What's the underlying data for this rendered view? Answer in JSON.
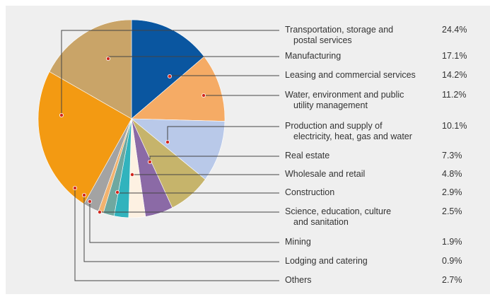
{
  "chart_data": {
    "type": "pie",
    "categories": [
      "Transportation, storage and\npostal services",
      "Manufacturing",
      "Leasing and commercial services",
      "Water, environment and public\nutility management",
      "Production and supply of\nelectricity, heat, gas and water",
      "Real estate",
      "Wholesale and retail",
      "Construction",
      "Science, education, culture\nand sanitation",
      "Mining",
      "Lodging and catering",
      "Others"
    ],
    "values": [
      24.4,
      17.1,
      14.2,
      11.2,
      10.1,
      7.3,
      4.8,
      2.9,
      2.5,
      1.9,
      0.9,
      2.7
    ],
    "value_labels": [
      "24.4%",
      "17.1%",
      "14.2%",
      "11.2%",
      "10.1%",
      "7.3%",
      "4.8%",
      "2.9%",
      "2.5%",
      "1.9%",
      "0.9%",
      "2.7%"
    ],
    "colors": [
      "#f39a12",
      "#c9a468",
      "#0a56a0",
      "#f5ab65",
      "#b9c9e9",
      "#c6b46b",
      "#8b6aa6",
      "#fdf1e2",
      "#31b3bd",
      "#6fa8a0",
      "#f2b36f",
      "#a3a3a3"
    ]
  }
}
